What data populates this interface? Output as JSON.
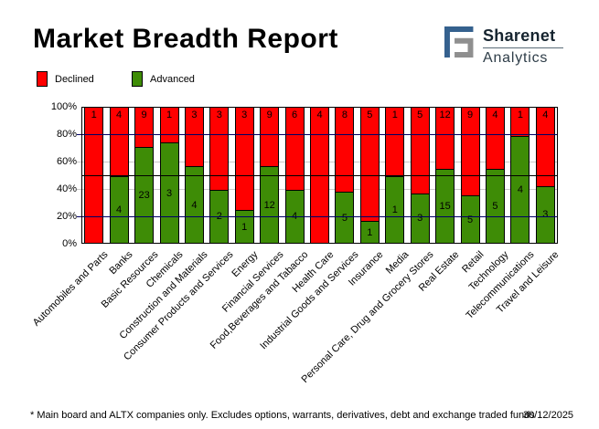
{
  "header": {
    "title": "Market Breadth Report",
    "logo": {
      "brand": "Sharenet",
      "sub": "Analytics",
      "blue": "#35618e",
      "gray": "#8f8f8f"
    }
  },
  "legend": {
    "items": [
      {
        "label": "Declined",
        "color": "#ff0000"
      },
      {
        "label": "Advanced",
        "color": "#3e8c06"
      }
    ]
  },
  "chart_data": {
    "type": "bar",
    "stacked": true,
    "note": "100% stacked column chart; green Advanced share on bottom, red Declined share on top; numbers on segments are company counts",
    "categories": [
      "Automobiles and Parts",
      "Banks",
      "Basic Resources",
      "Chemicals",
      "Construction and Materials",
      "Consumer Products and Services",
      "Energy",
      "Financial Services",
      "Food,Beverages and Tabacco",
      "Health Care",
      "Industrial Goods and Services",
      "Insurance",
      "Media",
      "Personal Care, Drug and Grocery Stores",
      "Real Estate",
      "Retail",
      "Technology",
      "Telecommunications",
      "Travel and Leisure"
    ],
    "series": [
      {
        "name": "Declined",
        "color": "#ff0000",
        "values": [
          1,
          4,
          9,
          1,
          3,
          3,
          3,
          9,
          6,
          4,
          8,
          5,
          1,
          5,
          12,
          9,
          4,
          1,
          4
        ]
      },
      {
        "name": "Advanced",
        "color": "#3e8c06",
        "values": [
          0,
          4,
          23,
          3,
          4,
          2,
          1,
          12,
          4,
          0,
          5,
          1,
          1,
          3,
          15,
          5,
          5,
          4,
          3
        ]
      }
    ],
    "value_axis": {
      "min": 0,
      "max": 100,
      "ticks": [
        {
          "label": "100%",
          "value": 100
        },
        {
          "label": "80%",
          "value": 80
        },
        {
          "label": "60%",
          "value": 60
        },
        {
          "label": "40%",
          "value": 40
        },
        {
          "label": "20%",
          "value": 20
        },
        {
          "label": "0%",
          "value": 0
        }
      ]
    },
    "gridlines": [
      {
        "value": 80,
        "color": "#000066",
        "layer": "front"
      },
      {
        "value": 60,
        "color": "#c9c9c9",
        "layer": "back"
      },
      {
        "value": 50,
        "color": "#000000",
        "layer": "front"
      },
      {
        "value": 40,
        "color": "#c9c9c9",
        "layer": "back"
      },
      {
        "value": 20,
        "color": "#000066",
        "layer": "front"
      }
    ],
    "legend_position": "top-left"
  },
  "footer": {
    "note": "* Main board and ALTX companies only. Excludes options, warrants, derivatives, debt and exchange traded funds",
    "date": "30/12/2025"
  }
}
